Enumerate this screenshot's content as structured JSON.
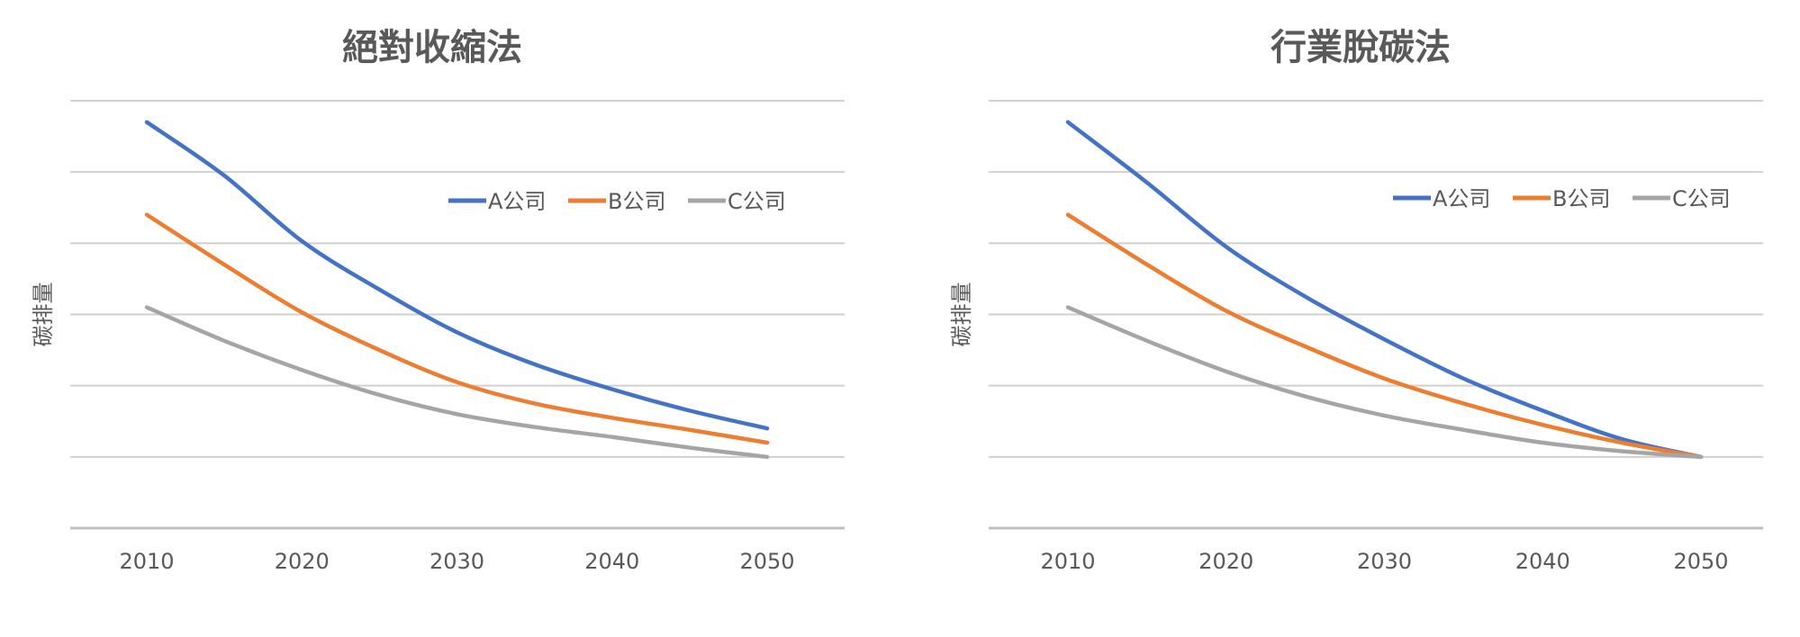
{
  "chart_data": [
    {
      "type": "line",
      "title": "絕對收縮法",
      "xlabel": "",
      "ylabel": "碳排量",
      "categories": [
        "2010",
        "2020",
        "2030",
        "2040",
        "2050"
      ],
      "x": [
        2010,
        2015,
        2020,
        2025,
        2030,
        2035,
        2040,
        2045,
        2050
      ],
      "ylim": [
        0,
        6
      ],
      "grid": true,
      "legend_position": "top-right",
      "series": [
        {
          "name": "A公司",
          "color": "#4472C4",
          "values": [
            5.7,
            4.95,
            4.03,
            3.35,
            2.75,
            2.3,
            1.95,
            1.65,
            1.4
          ]
        },
        {
          "name": "B公司",
          "color": "#ED7D31",
          "values": [
            4.4,
            3.7,
            3.03,
            2.5,
            2.05,
            1.75,
            1.55,
            1.38,
            1.2
          ]
        },
        {
          "name": "C公司",
          "color": "#A5A5A5",
          "values": [
            3.1,
            2.63,
            2.22,
            1.87,
            1.6,
            1.42,
            1.28,
            1.13,
            1.0
          ]
        }
      ]
    },
    {
      "type": "line",
      "title": "行業脫碳法",
      "xlabel": "",
      "ylabel": "碳排量",
      "categories": [
        "2010",
        "2020",
        "2030",
        "2040",
        "2050"
      ],
      "x": [
        2010,
        2015,
        2020,
        2025,
        2030,
        2035,
        2040,
        2045,
        2050
      ],
      "ylim": [
        0,
        6
      ],
      "grid": true,
      "legend_position": "top-right",
      "series": [
        {
          "name": "A公司",
          "color": "#4472C4",
          "values": [
            5.7,
            4.85,
            3.95,
            3.25,
            2.65,
            2.1,
            1.65,
            1.25,
            1.0
          ]
        },
        {
          "name": "B公司",
          "color": "#ED7D31",
          "values": [
            4.4,
            3.7,
            3.05,
            2.55,
            2.1,
            1.75,
            1.45,
            1.2,
            1.0
          ]
        },
        {
          "name": "C公司",
          "color": "#A5A5A5",
          "values": [
            3.1,
            2.63,
            2.2,
            1.85,
            1.58,
            1.38,
            1.2,
            1.08,
            1.0
          ]
        }
      ]
    }
  ]
}
